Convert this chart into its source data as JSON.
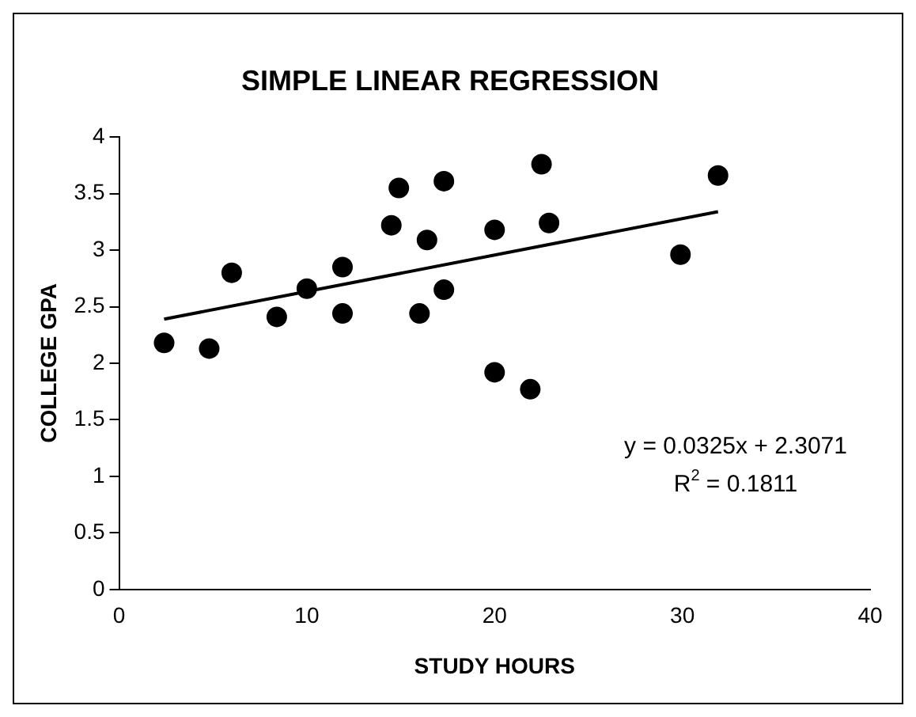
{
  "chart_data": {
    "type": "scatter",
    "title": "SIMPLE LINEAR REGRESSION",
    "xlabel": "STUDY HOURS",
    "ylabel": "COLLEGE GPA",
    "series": [
      {
        "marker": "circle",
        "color": "#000000",
        "x": [
          2.4,
          4.8,
          6.0,
          8.4,
          10.0,
          11.9,
          11.9,
          14.5,
          14.9,
          16.4,
          16.0,
          17.3,
          17.3,
          20.0,
          20.0,
          21.9,
          22.5,
          22.9,
          29.9,
          31.9
        ],
        "values": [
          2.18,
          2.13,
          2.8,
          2.41,
          2.66,
          2.85,
          2.44,
          3.22,
          3.55,
          3.09,
          2.44,
          3.61,
          2.65,
          3.18,
          1.92,
          1.77,
          3.76,
          3.24,
          2.96,
          3.66
        ]
      },
      {
        "type": "line",
        "marker": "none",
        "color": "#000000",
        "x": [
          2.4,
          31.9
        ],
        "values": [
          2.39,
          3.34
        ]
      }
    ],
    "annotations": [
      "y = 0.0325x + 2.3071",
      "R$^{2}$ = 0.1811"
    ],
    "xlim": [
      0,
      40
    ],
    "xticks": [
      0,
      10,
      20,
      30,
      40
    ],
    "ylim": [
      0,
      4
    ],
    "yticks": [
      0,
      0.5,
      1,
      1.5,
      2,
      2.5,
      3,
      3.5,
      4
    ],
    "grid": false,
    "legend": false
  }
}
